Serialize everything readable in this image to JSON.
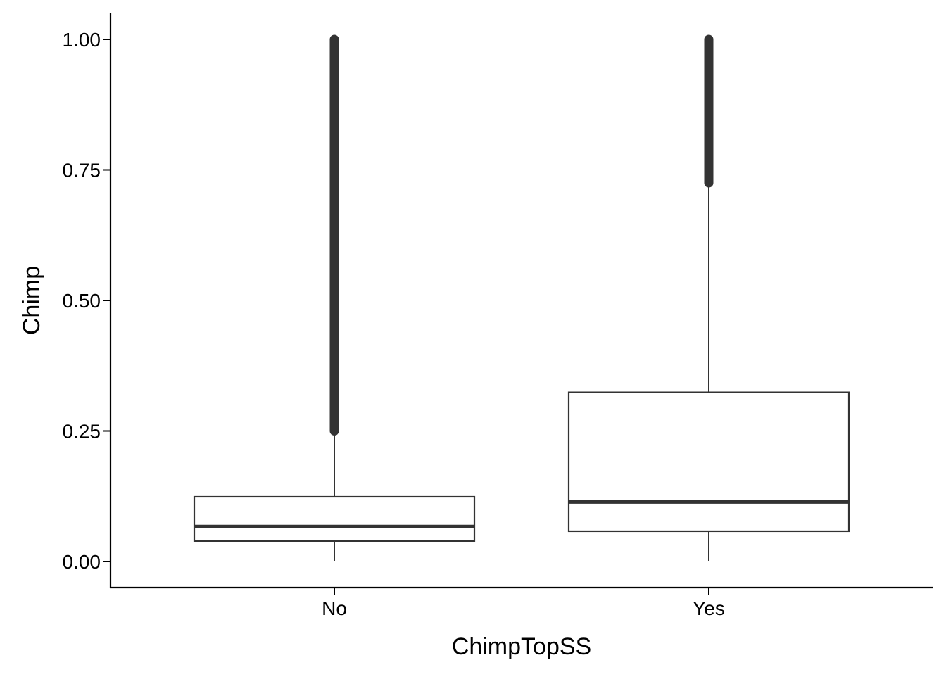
{
  "chart_data": {
    "type": "box",
    "xlabel": "ChimpTopSS",
    "ylabel": "Chimp",
    "ylim": [
      -0.05,
      1.05
    ],
    "y_ticks": [
      0.0,
      0.25,
      0.5,
      0.75,
      1.0
    ],
    "y_tick_labels": [
      "0.00",
      "0.25",
      "0.50",
      "0.75",
      "1.00"
    ],
    "categories": [
      "No",
      "Yes"
    ],
    "boxes": [
      {
        "category": "No",
        "whisker_low": 0.0,
        "q1": 0.039,
        "median": 0.067,
        "q3": 0.124,
        "whisker_high": 0.25,
        "outliers_from": 0.25,
        "outliers_to": 1.0
      },
      {
        "category": "Yes",
        "whisker_low": 0.0,
        "q1": 0.058,
        "median": 0.114,
        "q3": 0.324,
        "whisker_high": 0.725,
        "outliers_from": 0.725,
        "outliers_to": 1.0
      }
    ],
    "grid": false,
    "legend": "none",
    "colors": {
      "box_stroke": "#333333",
      "box_fill": "#ffffff",
      "axis": "#000000",
      "outlier": "#333333"
    }
  }
}
